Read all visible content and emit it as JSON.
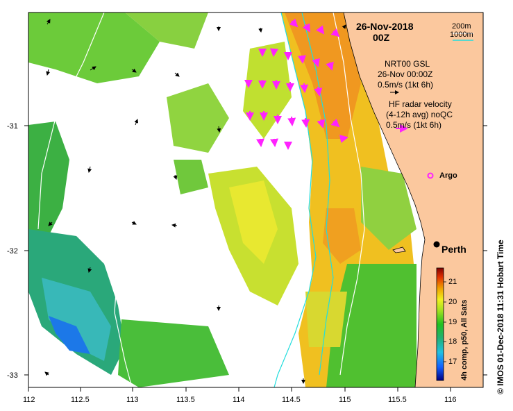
{
  "header": {
    "date": "26-Nov-2018",
    "time": "00Z"
  },
  "scale_legend": {
    "label_200": "200m",
    "label_1000": "1000m"
  },
  "model_legend": {
    "line1": "NRT00 GSL",
    "line2": "26-Nov 00:00Z",
    "line3": "0.5m/s (1kt 6h)"
  },
  "radar_legend": {
    "line1": "HF radar velocity",
    "line2": "(4-12h avg) noQC",
    "line3": "0.5m/s (1kt 6h)"
  },
  "argo": {
    "label": "Argo"
  },
  "city": {
    "label": "Perth"
  },
  "colorbar": {
    "title": "4h comp, p50, All Sats",
    "ticks": [
      "21",
      "20",
      "19",
      "18",
      "17"
    ],
    "range": [
      16.5,
      21.5
    ]
  },
  "credit": "© IMOS 01-Dec-2018 11:31 Hobart Time",
  "x_ticks": [
    "112",
    "112.5",
    "113",
    "113.5",
    "114",
    "114.5",
    "115",
    "115.5",
    "116"
  ],
  "y_ticks": [
    "-31",
    "-32",
    "-33"
  ],
  "colors": {
    "land": "#fbc89e",
    "radar_arrow": "#ff22ff",
    "isobath": "#22dddd"
  }
}
